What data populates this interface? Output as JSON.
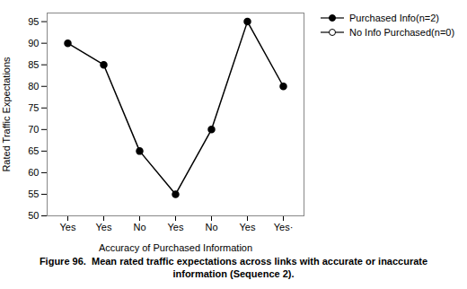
{
  "chart_data": {
    "type": "line",
    "xlabel": "Accuracy of Purchased Information",
    "ylabel": "Rated Traffic Expectations",
    "caption": "Figure 96.  Mean rated traffic expectations across links with accurate or inaccurate\ninformation (Sequence 2).",
    "categories": [
      "Yes",
      "Yes",
      "No",
      "Yes",
      "No",
      "Yes",
      "Yes·"
    ],
    "series": [
      {
        "name": "Purchased Info(n=2)",
        "color": "#000000",
        "marker": "circle",
        "values": [
          90,
          85,
          65,
          55,
          70,
          95,
          80
        ]
      },
      {
        "name": "No Info Purchased(n=0)",
        "color": "#000000",
        "marker": "open_circle",
        "values": [
          null,
          null,
          null,
          null,
          null,
          null,
          null
        ]
      }
    ],
    "ylim": [
      50,
      97
    ],
    "yticks": [
      50,
      55,
      60,
      65,
      70,
      75,
      80,
      85,
      90,
      95
    ],
    "grid": false,
    "legend": "right"
  }
}
